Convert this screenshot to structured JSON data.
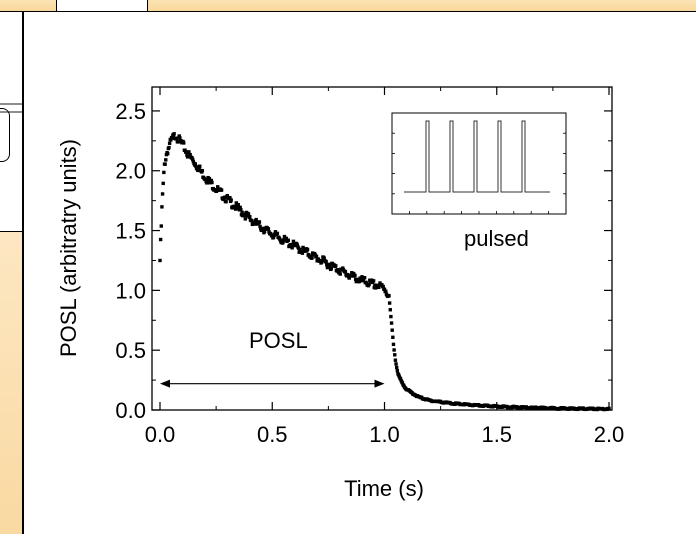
{
  "chart_data": {
    "type": "scatter",
    "title": "",
    "xlabel": "Time (s)",
    "ylabel": "POSL (arbitratry units)",
    "xlim": [
      0.0,
      2.0
    ],
    "ylim": [
      0.0,
      2.7
    ],
    "xticks": [
      0.0,
      0.5,
      1.0,
      1.5,
      2.0
    ],
    "xtick_labels": [
      "0.0",
      "0.5",
      "1.0",
      "1.5",
      "2.0"
    ],
    "yticks": [
      0.0,
      0.5,
      1.0,
      1.5,
      2.0,
      2.5
    ],
    "ytick_labels": [
      "0.0",
      "0.5",
      "1.0",
      "1.5",
      "2.0",
      "2.5"
    ],
    "grid": false,
    "marker": "square",
    "marker_color": "#000000",
    "series": [
      {
        "x": [
          0.0,
          0.01,
          0.02,
          0.03,
          0.04,
          0.05,
          0.06,
          0.07,
          0.08,
          0.1,
          0.12,
          0.15,
          0.2,
          0.25,
          0.3,
          0.35,
          0.4,
          0.45,
          0.5,
          0.55,
          0.6,
          0.65,
          0.7,
          0.75,
          0.8,
          0.85,
          0.9,
          0.95,
          1.0,
          1.02,
          1.03,
          1.04,
          1.05,
          1.06,
          1.08,
          1.1,
          1.15,
          1.2,
          1.3,
          1.4,
          1.5,
          1.6,
          1.7,
          1.8,
          1.9,
          2.0
        ],
        "y": [
          1.25,
          1.75,
          2.05,
          2.15,
          2.2,
          2.25,
          2.28,
          2.3,
          2.27,
          2.22,
          2.15,
          2.08,
          1.95,
          1.85,
          1.76,
          1.68,
          1.6,
          1.53,
          1.47,
          1.42,
          1.37,
          1.32,
          1.27,
          1.22,
          1.17,
          1.12,
          1.08,
          1.05,
          1.02,
          0.95,
          0.75,
          0.55,
          0.4,
          0.3,
          0.22,
          0.17,
          0.11,
          0.08,
          0.055,
          0.04,
          0.03,
          0.022,
          0.017,
          0.013,
          0.01,
          0.008
        ]
      }
    ],
    "annotations": {
      "posl_label": "POSL",
      "posl_arrow": {
        "from": 0.0,
        "to": 1.0,
        "y": 0.22
      },
      "inset_label": "pulsed"
    },
    "inset": {
      "pulses": 5,
      "position": "top-right"
    }
  }
}
